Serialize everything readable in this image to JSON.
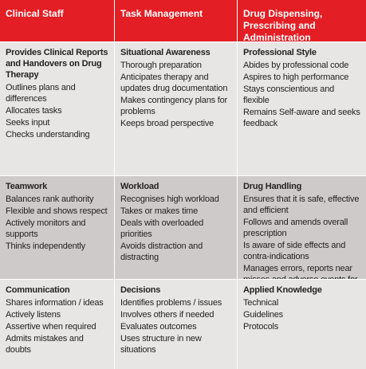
{
  "header": {
    "columns": [
      "Clinical Staff",
      "Task Management",
      "Drug Dispensing, Prescribing and Administration"
    ]
  },
  "rows": [
    [
      {
        "title": "Provides Clinical Reports and Handovers on Drug Therapy",
        "items": [
          "Outlines plans and differences",
          "Allocates tasks",
          "Seeks input",
          "Checks understanding"
        ]
      },
      {
        "title": "Situational Awareness",
        "items": [
          "Thorough preparation",
          "Anticipates therapy and updates drug documentation",
          "Makes contingency plans for problems",
          "Keeps broad perspective"
        ]
      },
      {
        "title": "Professional Style",
        "items": [
          "Abides by professional code",
          "Aspires to high performance",
          "Stays conscientious and flexible",
          "Remains Self-aware and seeks feedback"
        ]
      }
    ],
    [
      {
        "title": "Teamwork",
        "items": [
          "Balances rank authority",
          "Flexible and shows respect",
          "Actively monitors and supports",
          "Thinks independently"
        ]
      },
      {
        "title": "Workload",
        "items": [
          "Recognises high workload",
          "Takes or makes time",
          "Deals with overloaded priorities",
          "Avoids distraction and distracting"
        ]
      },
      {
        "title": "Drug Handling",
        "items": [
          "Ensures that it is safe, effective and efficient",
          "Follows and amends overall prescription",
          "Is aware of side effects and contra-indications",
          "Manages errors, reports near misses and adverse events for learning"
        ]
      }
    ],
    [
      {
        "title": "Communication",
        "items": [
          "Shares information / ideas",
          "Actively listens",
          "Assertive when required",
          "Admits mistakes and doubts"
        ]
      },
      {
        "title": "Decisions",
        "items": [
          "Identifies problems / issues",
          "Involves others if needed",
          "Evaluates outcomes",
          "Uses structure in new situations"
        ]
      },
      {
        "title": "Applied Knowledge",
        "items": [
          "Technical",
          "Guidelines",
          "Protocols"
        ]
      }
    ]
  ]
}
